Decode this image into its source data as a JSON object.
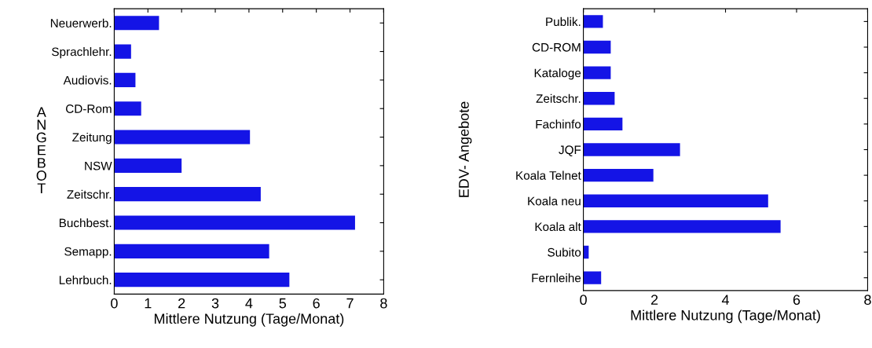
{
  "chart_data": [
    {
      "type": "bar",
      "orientation": "horizontal",
      "ylabel": "ANGEBOT",
      "xlabel": "Mittlere Nutzung (Tage/Monat)",
      "categories": [
        "Neuerwerb.",
        "Sprachlehr.",
        "Audiovis.",
        "CD-Rom",
        "Zeitung",
        "NSW",
        "Zeitschr.",
        "Buchbest.",
        "Semapp.",
        "Lehrbuch."
      ],
      "values": [
        1.33,
        0.5,
        0.63,
        0.8,
        4.03,
        2.0,
        4.35,
        7.15,
        4.6,
        5.2
      ],
      "color": "#1414e6",
      "xlim": [
        0,
        8
      ],
      "xticks": [
        0,
        1,
        2,
        3,
        4,
        5,
        6,
        7,
        8
      ],
      "grid": false,
      "legend": false
    },
    {
      "type": "bar",
      "orientation": "horizontal",
      "ylabel": "EDV- Angebote",
      "xlabel": "Mittlere Nutzung (Tage/Monat)",
      "categories": [
        "Publik.",
        "CD-ROM",
        "Kataloge",
        "Zeitschr.",
        "Fachinfo",
        "JQF",
        "Koala Telnet",
        "Koala neu",
        "Koala alt",
        "Subito",
        "Fernleihe"
      ],
      "values": [
        0.55,
        0.77,
        0.77,
        0.88,
        1.1,
        2.72,
        1.97,
        5.2,
        5.55,
        0.15,
        0.5
      ],
      "color": "#1414e6",
      "xlim": [
        0,
        8
      ],
      "xticks": [
        0,
        2,
        4,
        6,
        8
      ],
      "grid": false,
      "legend": false
    }
  ]
}
